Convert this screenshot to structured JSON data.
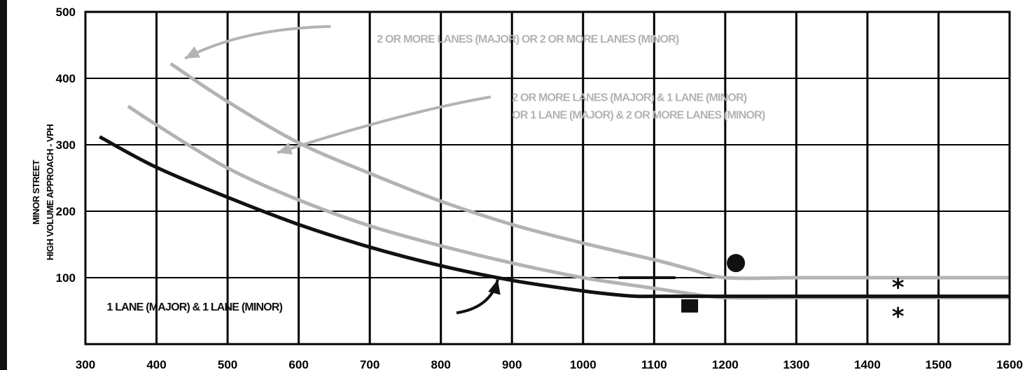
{
  "chart_data": {
    "type": "line",
    "title": "",
    "xlabel": "",
    "ylabel_line1": "MINOR STREET",
    "ylabel_line2": "HIGH VOLUME APPROACH - VPH",
    "xlim": [
      300,
      1600
    ],
    "ylim": [
      0,
      500
    ],
    "x_ticks": [
      300,
      400,
      500,
      600,
      700,
      800,
      900,
      1000,
      1100,
      1200,
      1300,
      1400,
      1500,
      1600
    ],
    "y_ticks": [
      100,
      200,
      300,
      400,
      500
    ],
    "grid": true,
    "series": [
      {
        "name": "2 OR MORE LANES (MAJOR) OR 2 OR MORE LANES (MINOR)",
        "color": "#b3b3b3",
        "x": [
          420,
          500,
          600,
          700,
          800,
          900,
          1000,
          1100,
          1150,
          1200,
          1300,
          1400,
          1500,
          1600
        ],
        "y": [
          422,
          365,
          303,
          257,
          215,
          180,
          152,
          127,
          113,
          100,
          100,
          100,
          100,
          100
        ]
      },
      {
        "name": "2 OR MORE LANES (MAJOR) & 1 LANE (MINOR) OR 1 LANE (MAJOR) & 2 OR MORE LANES (MINOR)",
        "color": "#b3b3b3",
        "x": [
          360,
          400,
          500,
          600,
          700,
          800,
          900,
          1000,
          1100,
          1150,
          1200,
          1300,
          1400,
          1500,
          1600
        ],
        "y": [
          358,
          330,
          265,
          217,
          178,
          148,
          122,
          100,
          84,
          76,
          70,
          70,
          70,
          70,
          70
        ]
      },
      {
        "name": "1 LANE (MAJOR) & 1 LANE (MINOR)",
        "color": "#111111",
        "x": [
          320,
          400,
          500,
          600,
          700,
          800,
          900,
          1000,
          1050,
          1075,
          1100,
          1200,
          1300,
          1400,
          1500,
          1600
        ],
        "y": [
          312,
          266,
          221,
          180,
          146,
          118,
          96,
          80,
          74,
          72,
          72,
          72,
          72,
          72,
          72,
          72
        ]
      }
    ],
    "extra_lines": [
      {
        "color": "#111111",
        "x": [
          1050,
          1130
        ],
        "y": [
          100,
          100
        ]
      }
    ],
    "markers": [
      {
        "shape": "circle",
        "x": 1215,
        "y": 122,
        "color": "#111111"
      },
      {
        "shape": "square",
        "x": 1150,
        "y": 57,
        "color": "#111111"
      },
      {
        "shape": "asterisk",
        "x": 1443,
        "y": 88,
        "color": "#111111"
      },
      {
        "shape": "asterisk",
        "x": 1443,
        "y": 44,
        "color": "#111111"
      }
    ],
    "annotations": [
      {
        "lines": [
          "2 OR MORE LANES (MAJOR) OR 2 OR MORE LANES (MINOR)"
        ],
        "color": "#b3b3b3",
        "x": 710,
        "y": 460,
        "anchor": "start"
      },
      {
        "lines": [
          "2 OR MORE LANES (MAJOR) & 1 LANE (MINOR)",
          "OR 1 LANE (MAJOR) & 2 OR MORE LANES (MINOR)"
        ],
        "color": "#b3b3b3",
        "x": 900,
        "y": 372,
        "anchor": "start"
      },
      {
        "lines": [
          "1 LANE (MAJOR) & 1 LANE (MINOR)"
        ],
        "color": "#111111",
        "x": 330,
        "y": 57,
        "anchor": "start"
      }
    ],
    "arrows": [
      {
        "color": "#b3b3b3",
        "from": [
          645,
          478
        ],
        "ctrl": [
          520,
          475
        ],
        "to": [
          440,
          430
        ]
      },
      {
        "color": "#b3b3b3",
        "from": [
          870,
          372
        ],
        "ctrl": [
          750,
          350
        ],
        "to": [
          570,
          288
        ]
      },
      {
        "color": "#111111",
        "from": [
          822,
          47
        ],
        "ctrl": [
          870,
          55
        ],
        "to": [
          880,
          97
        ]
      }
    ]
  }
}
